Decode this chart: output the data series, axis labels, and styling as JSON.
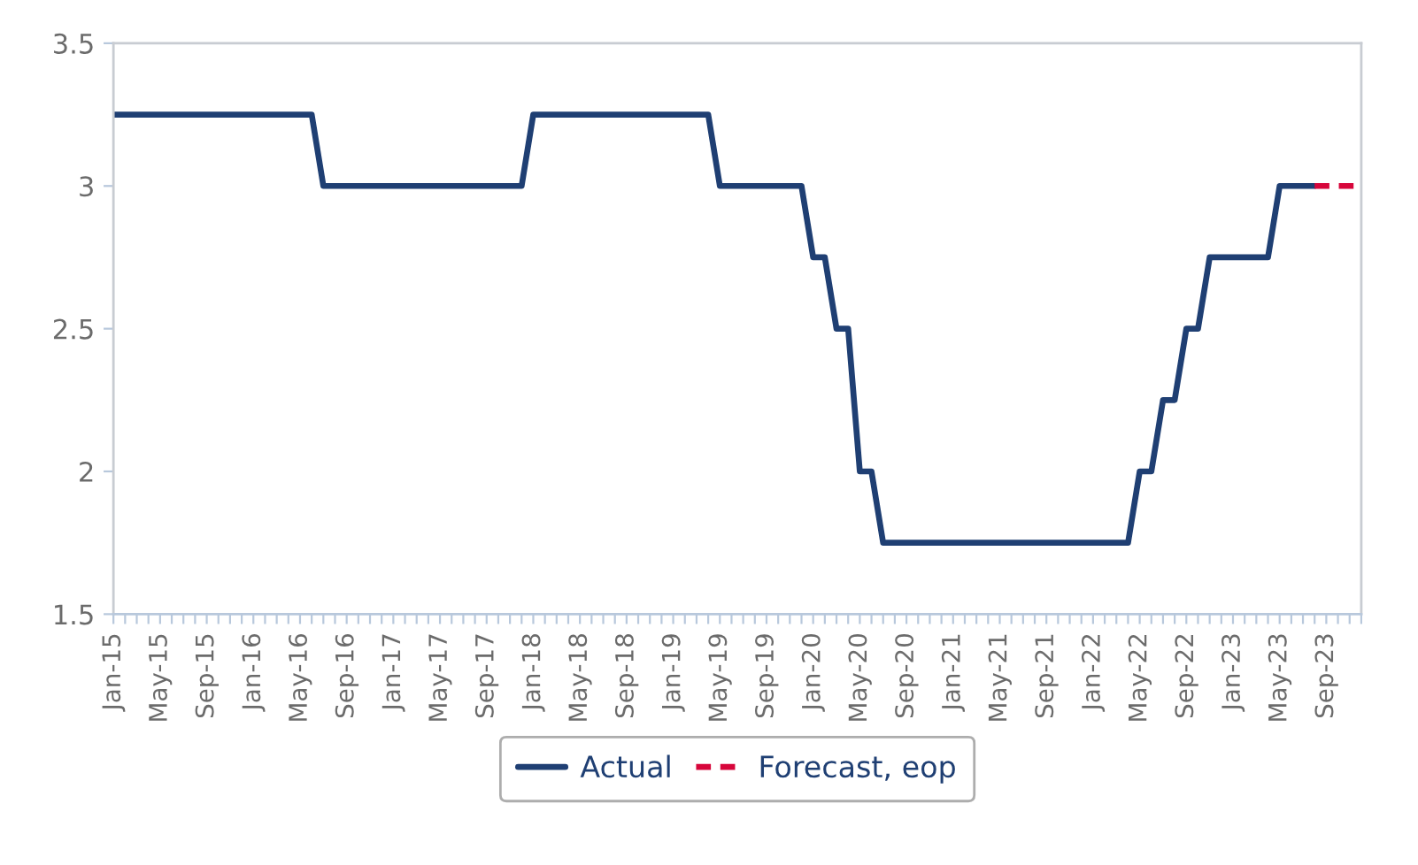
{
  "chart_data": {
    "type": "line",
    "categories": [
      "Jan-15",
      null,
      null,
      null,
      "May-15",
      null,
      null,
      null,
      "Sep-15",
      null,
      null,
      null,
      "Jan-16",
      null,
      null,
      null,
      "May-16",
      null,
      null,
      null,
      "Sep-16",
      null,
      null,
      null,
      "Jan-17",
      null,
      null,
      null,
      "May-17",
      null,
      null,
      null,
      "Sep-17",
      null,
      null,
      null,
      "Jan-18",
      null,
      null,
      null,
      "May-18",
      null,
      null,
      null,
      "Sep-18",
      null,
      null,
      null,
      "Jan-19",
      null,
      null,
      null,
      "May-19",
      null,
      null,
      null,
      "Sep-19",
      null,
      null,
      null,
      "Jan-20",
      null,
      null,
      null,
      "May-20",
      null,
      null,
      null,
      "Sep-20",
      null,
      null,
      null,
      "Jan-21",
      null,
      null,
      null,
      "May-21",
      null,
      null,
      null,
      "Sep-21",
      null,
      null,
      null,
      "Jan-22",
      null,
      null,
      null,
      "May-22",
      null,
      null,
      null,
      "Sep-22",
      null,
      null,
      null,
      "Jan-23",
      null,
      null,
      null,
      "May-23",
      null,
      null,
      null,
      "Sep-23",
      null,
      null,
      null
    ],
    "series": [
      {
        "name": "Actual",
        "color": "#1f3f73",
        "line_style": "solid",
        "values": [
          3.25,
          3.25,
          3.25,
          3.25,
          3.25,
          3.25,
          3.25,
          3.25,
          3.25,
          3.25,
          3.25,
          3.25,
          3.25,
          3.25,
          3.25,
          3.25,
          3.25,
          3.25,
          3.0,
          3.0,
          3.0,
          3.0,
          3.0,
          3.0,
          3.0,
          3.0,
          3.0,
          3.0,
          3.0,
          3.0,
          3.0,
          3.0,
          3.0,
          3.0,
          3.0,
          3.0,
          3.25,
          3.25,
          3.25,
          3.25,
          3.25,
          3.25,
          3.25,
          3.25,
          3.25,
          3.25,
          3.25,
          3.25,
          3.25,
          3.25,
          3.25,
          3.25,
          3.0,
          3.0,
          3.0,
          3.0,
          3.0,
          3.0,
          3.0,
          3.0,
          2.75,
          2.75,
          2.5,
          2.5,
          2.0,
          2.0,
          1.75,
          1.75,
          1.75,
          1.75,
          1.75,
          1.75,
          1.75,
          1.75,
          1.75,
          1.75,
          1.75,
          1.75,
          1.75,
          1.75,
          1.75,
          1.75,
          1.75,
          1.75,
          1.75,
          1.75,
          1.75,
          1.75,
          2.0,
          2.0,
          2.25,
          2.25,
          2.5,
          2.5,
          2.75,
          2.75,
          2.75,
          2.75,
          2.75,
          2.75,
          3.0,
          3.0,
          3.0,
          3.0,
          null,
          null,
          null,
          null
        ]
      },
      {
        "name": "Forecast, eop",
        "color": "#d7063b",
        "line_style": "dashed",
        "values": [
          null,
          null,
          null,
          null,
          null,
          null,
          null,
          null,
          null,
          null,
          null,
          null,
          null,
          null,
          null,
          null,
          null,
          null,
          null,
          null,
          null,
          null,
          null,
          null,
          null,
          null,
          null,
          null,
          null,
          null,
          null,
          null,
          null,
          null,
          null,
          null,
          null,
          null,
          null,
          null,
          null,
          null,
          null,
          null,
          null,
          null,
          null,
          null,
          null,
          null,
          null,
          null,
          null,
          null,
          null,
          null,
          null,
          null,
          null,
          null,
          null,
          null,
          null,
          null,
          null,
          null,
          null,
          null,
          null,
          null,
          null,
          null,
          null,
          null,
          null,
          null,
          null,
          null,
          null,
          null,
          null,
          null,
          null,
          null,
          null,
          null,
          null,
          null,
          null,
          null,
          null,
          null,
          null,
          null,
          null,
          null,
          null,
          null,
          null,
          null,
          null,
          null,
          null,
          3.0,
          3.0,
          3.0,
          3.0,
          3.0
        ]
      }
    ],
    "ylim": [
      1.5,
      3.5
    ],
    "yticks": [
      1.5,
      2,
      2.5,
      3,
      3.5
    ],
    "grid": false,
    "legend": "bottom"
  }
}
